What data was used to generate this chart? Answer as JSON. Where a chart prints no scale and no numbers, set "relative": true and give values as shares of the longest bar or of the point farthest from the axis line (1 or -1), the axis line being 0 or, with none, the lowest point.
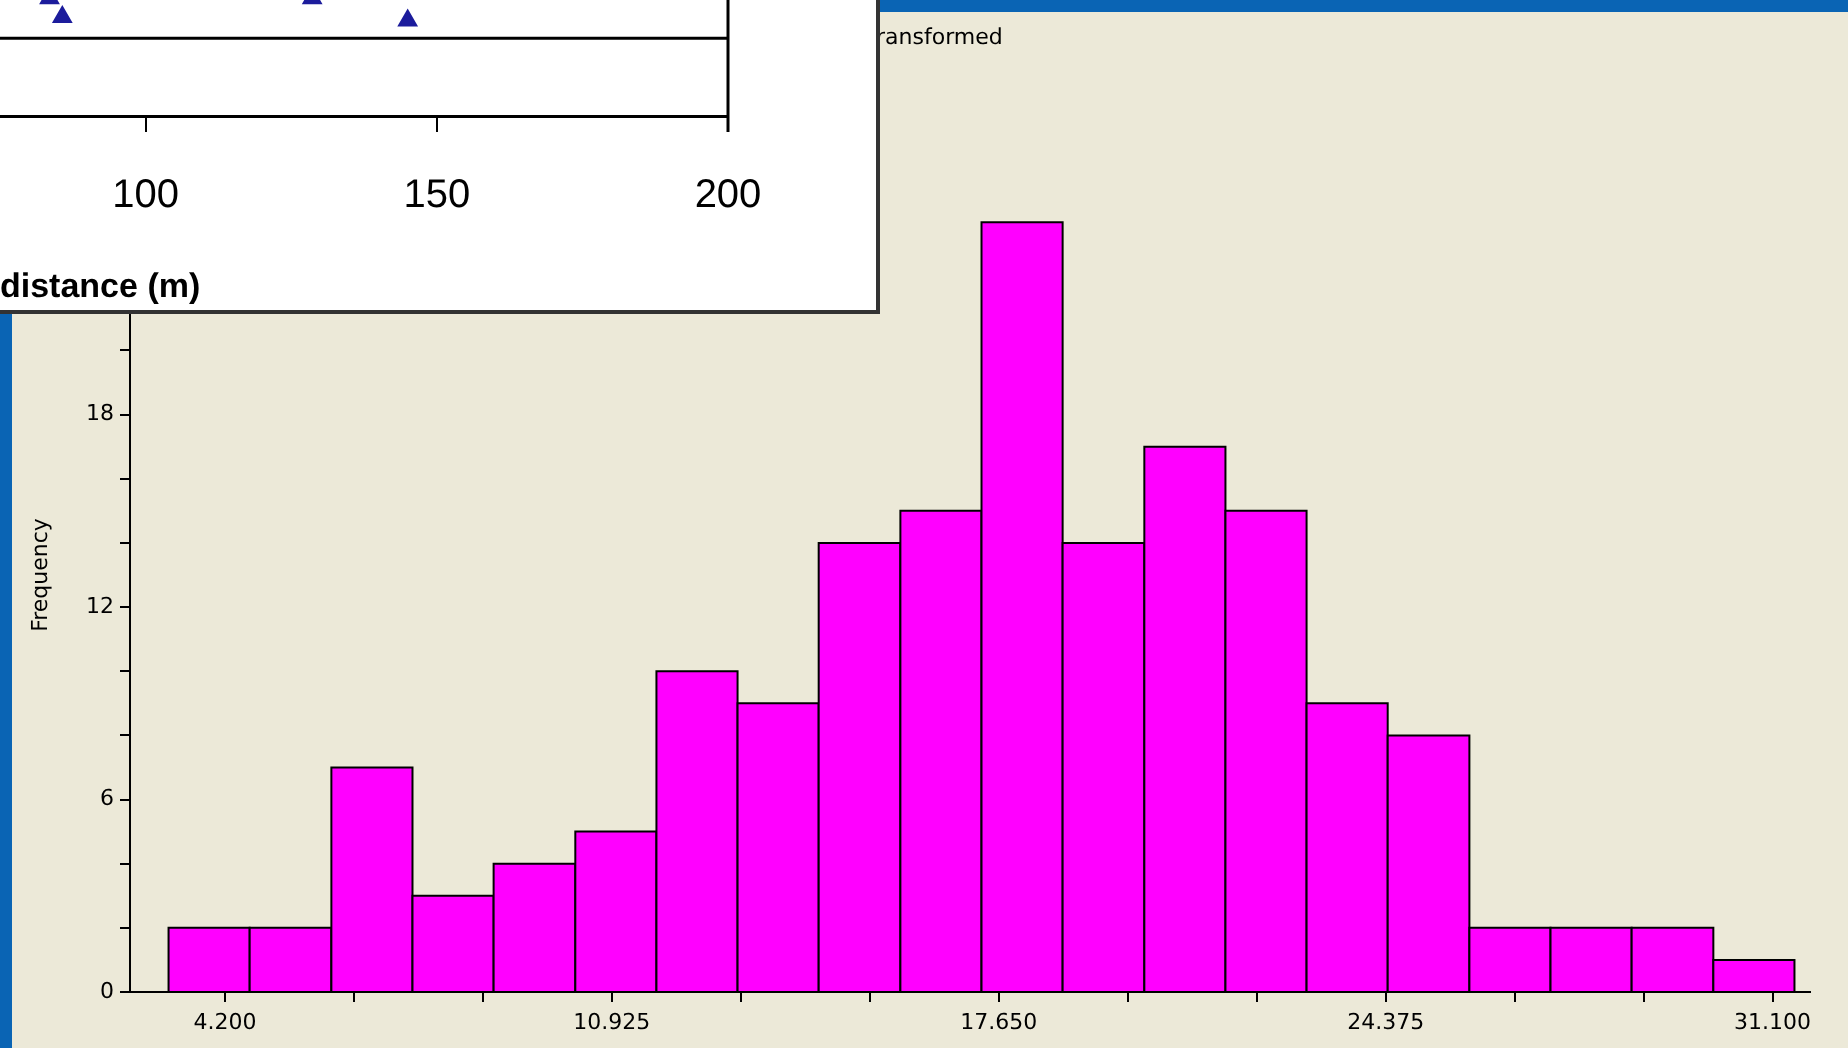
{
  "chart_data": [
    {
      "type": "scatter",
      "relative": true,
      "x": [
        83.5,
        85.7,
        128.6,
        145
      ],
      "values": [
        1,
        0.84,
        1,
        0.81
      ],
      "color": "#1c1c9c",
      "marker": "triangle",
      "xlim": [
        75,
        200
      ],
      "xticks": [
        100,
        150,
        200
      ],
      "xlabel": "distance (m)",
      "tick_labels": "x",
      "grid": false,
      "ref_lines": [
        {
          "axis": "y",
          "value": 0.66,
          "color": "#000000"
        }
      ]
    },
    {
      "type": "histogram",
      "title": "ransformed",
      "ylabel": "Frequency",
      "color": "#ff00ff",
      "grid": false,
      "bins": [
        3.22,
        4.63,
        6.05,
        7.46,
        8.87,
        10.29,
        11.7,
        13.11,
        14.52,
        15.94,
        17.35,
        18.76,
        20.18,
        21.59,
        23.0,
        24.41,
        25.83,
        27.24,
        28.65,
        30.07,
        31.48
      ],
      "values": [
        2,
        2,
        7,
        3,
        4,
        5,
        10,
        9,
        14,
        15,
        24,
        14,
        17,
        15,
        9,
        8,
        2,
        2,
        2,
        1
      ],
      "xlim": [
        2.55,
        31.75
      ],
      "xticks": [
        {
          "value": 4.2,
          "label": "4.200"
        },
        {
          "value": 6.442,
          "label": null
        },
        {
          "value": 8.683,
          "label": null
        },
        {
          "value": 10.925,
          "label": "10.925"
        },
        {
          "value": 13.167,
          "label": null
        },
        {
          "value": 15.408,
          "label": null
        },
        {
          "value": 17.65,
          "label": "17.650"
        },
        {
          "value": 19.892,
          "label": null
        },
        {
          "value": 22.133,
          "label": null
        },
        {
          "value": 24.375,
          "label": "24.375"
        },
        {
          "value": 26.617,
          "label": null
        },
        {
          "value": 28.858,
          "label": null
        },
        {
          "value": 31.1,
          "label": "31.100"
        }
      ],
      "ylim": [
        0,
        26
      ],
      "yticks": [
        0,
        {
          "value": 2,
          "label": null
        },
        {
          "value": 4,
          "label": null
        },
        6,
        {
          "value": 8,
          "label": null
        },
        {
          "value": 10,
          "label": null
        },
        12,
        {
          "value": 14,
          "label": null
        },
        {
          "value": 16,
          "label": null
        },
        18,
        {
          "value": 20,
          "label": null
        }
      ]
    }
  ]
}
